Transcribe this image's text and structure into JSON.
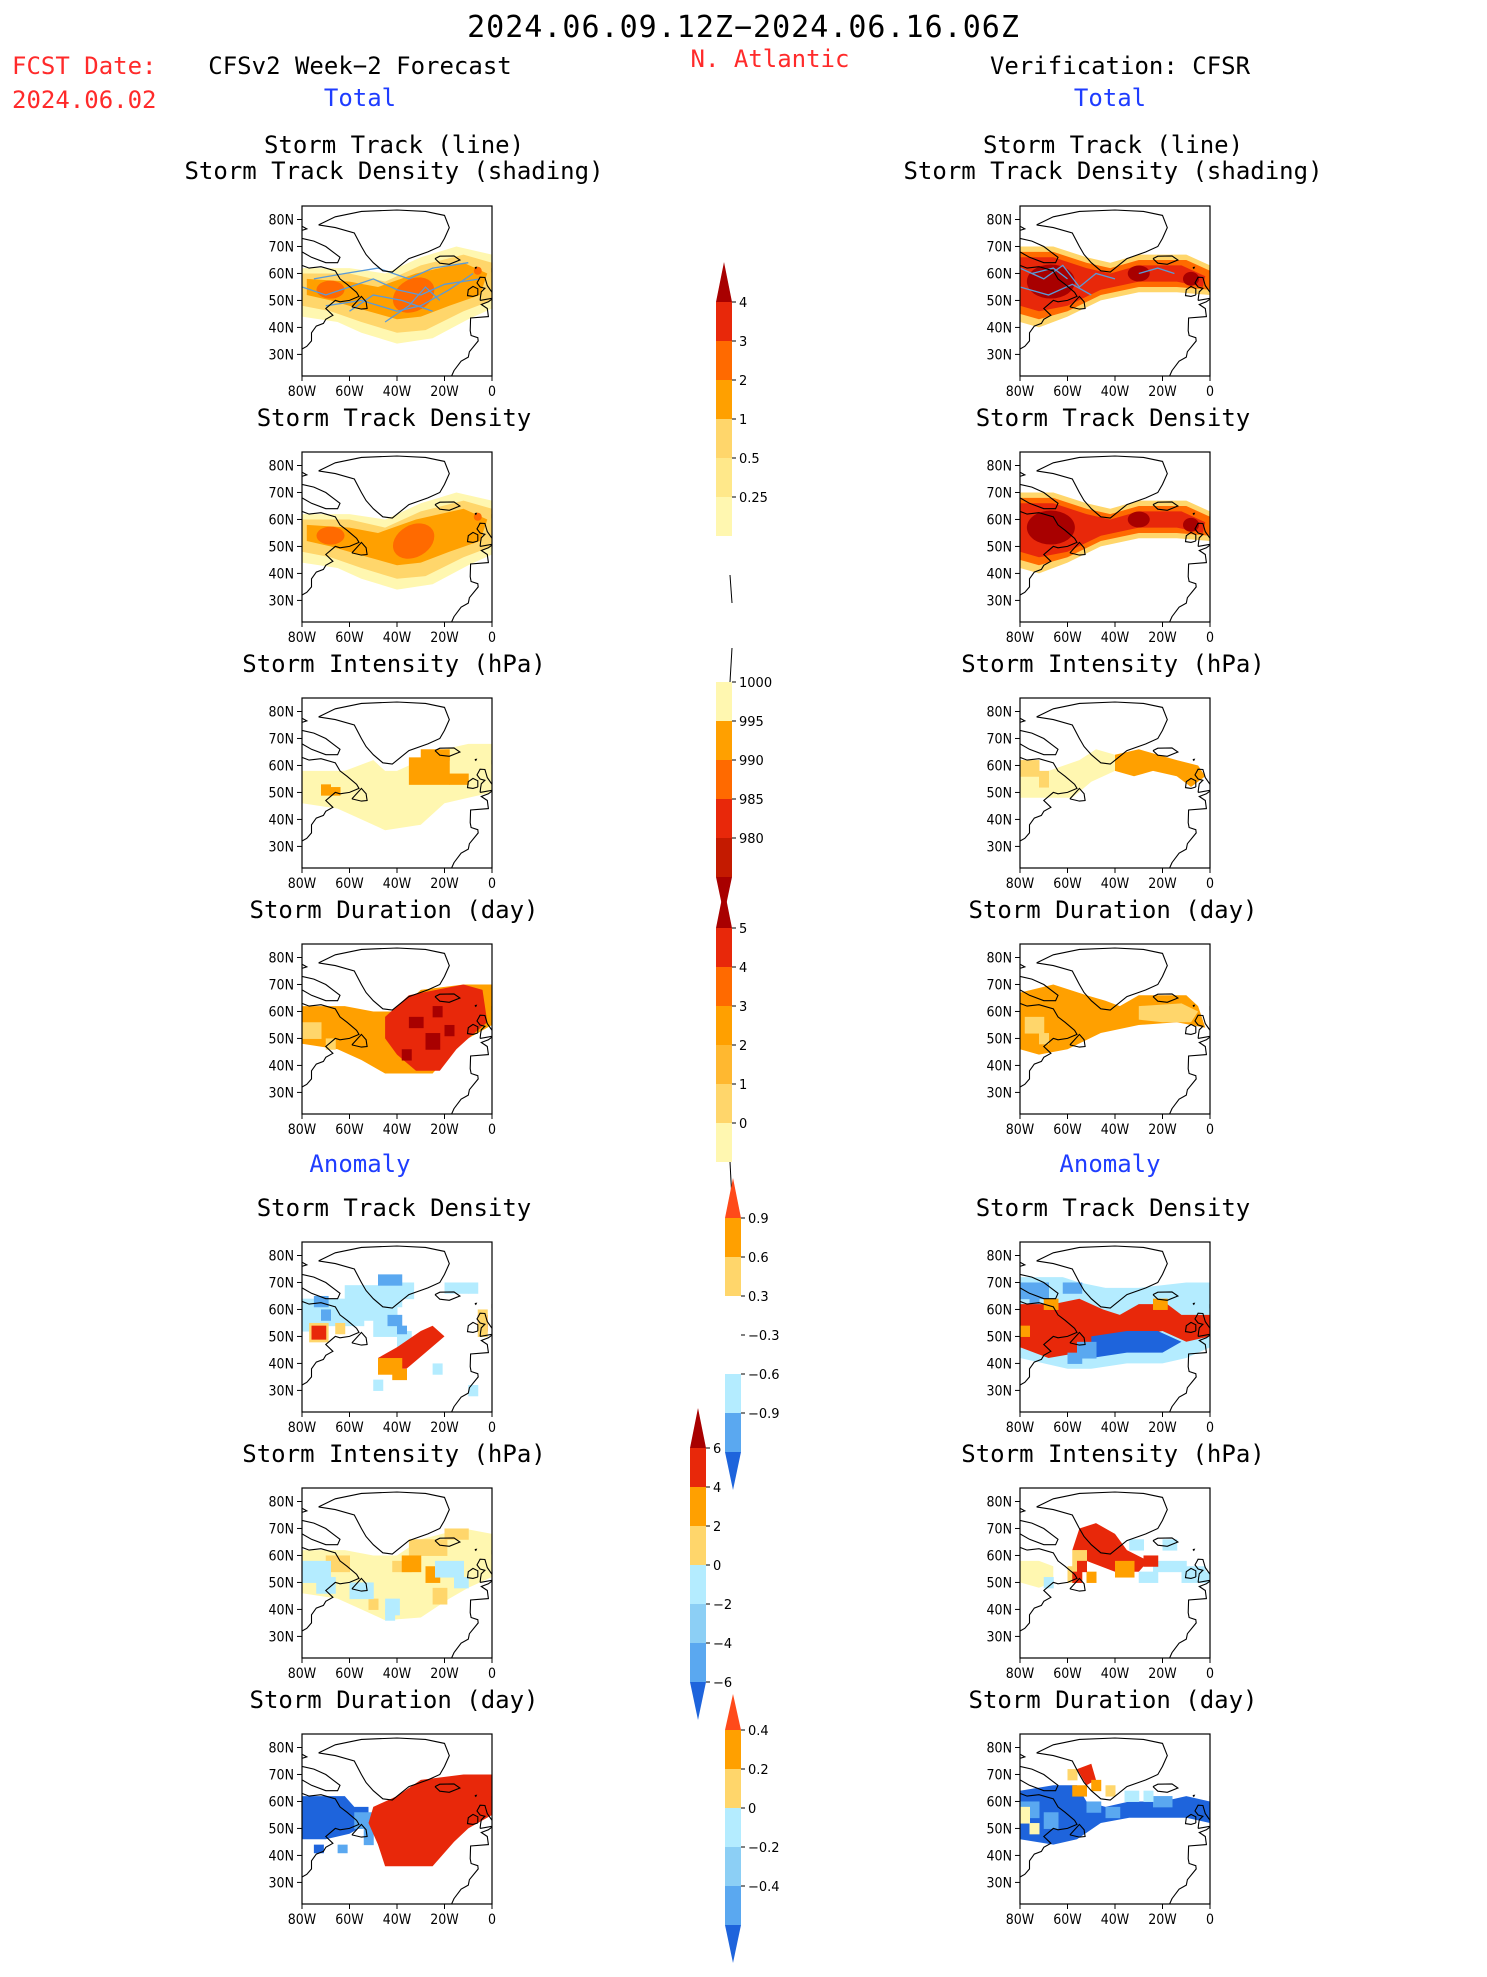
{
  "header": {
    "period": "2024.06.09.12Z−2024.06.16.06Z",
    "fcst_label": "FCST Date:",
    "fcst_date": "2024.06.02",
    "left_title": "CFSv2 Week−2 Forecast",
    "region": "N. Atlantic",
    "right_title": "Verification: CFSR"
  },
  "sections": {
    "total": "Total",
    "anomaly": "Anomaly"
  },
  "panel_titles": {
    "track_line": "Storm Track (line)",
    "track_density_shading": "Storm Track Density (shading)",
    "track_density": "Storm Track Density",
    "intensity": "Storm Intensity (hPa)",
    "duration": "Storm Duration (day)"
  },
  "axes": {
    "lat": [
      "80N",
      "70N",
      "60N",
      "50N",
      "40N",
      "30N"
    ],
    "lon": [
      "80W",
      "60W",
      "40W",
      "20W",
      "0"
    ]
  },
  "colorbars": {
    "density_total": [
      "4",
      "3",
      "2",
      "1",
      "0.5",
      "0.25"
    ],
    "intensity_total": [
      "1000",
      "995",
      "990",
      "985",
      "980"
    ],
    "duration_total": [
      "5",
      "4",
      "3",
      "2",
      "1",
      "0"
    ],
    "density_anom": [
      "0.9",
      "0.6",
      "0.3",
      "−0.3",
      "−0.6",
      "−0.9"
    ],
    "intensity_anom": [
      "6",
      "4",
      "2",
      "0",
      "−2",
      "−4",
      "−6"
    ],
    "duration_anom": [
      "0.4",
      "0.2",
      "0",
      "−0.2",
      "−0.4"
    ]
  },
  "colors": {
    "title_red": "#ff2a2a",
    "section_blue": "#1f3dff",
    "pale_yellow": "#fff7b0",
    "light_orange": "#ffd66b",
    "orange": "#ffa000",
    "dark_orange": "#ff6a00",
    "red": "#e8280a",
    "dark_red": "#a80000",
    "light_blue": "#b4ecff",
    "mid_blue": "#5aa8f0",
    "blue": "#1e64dc",
    "track_line": "#5a9ad8"
  }
}
